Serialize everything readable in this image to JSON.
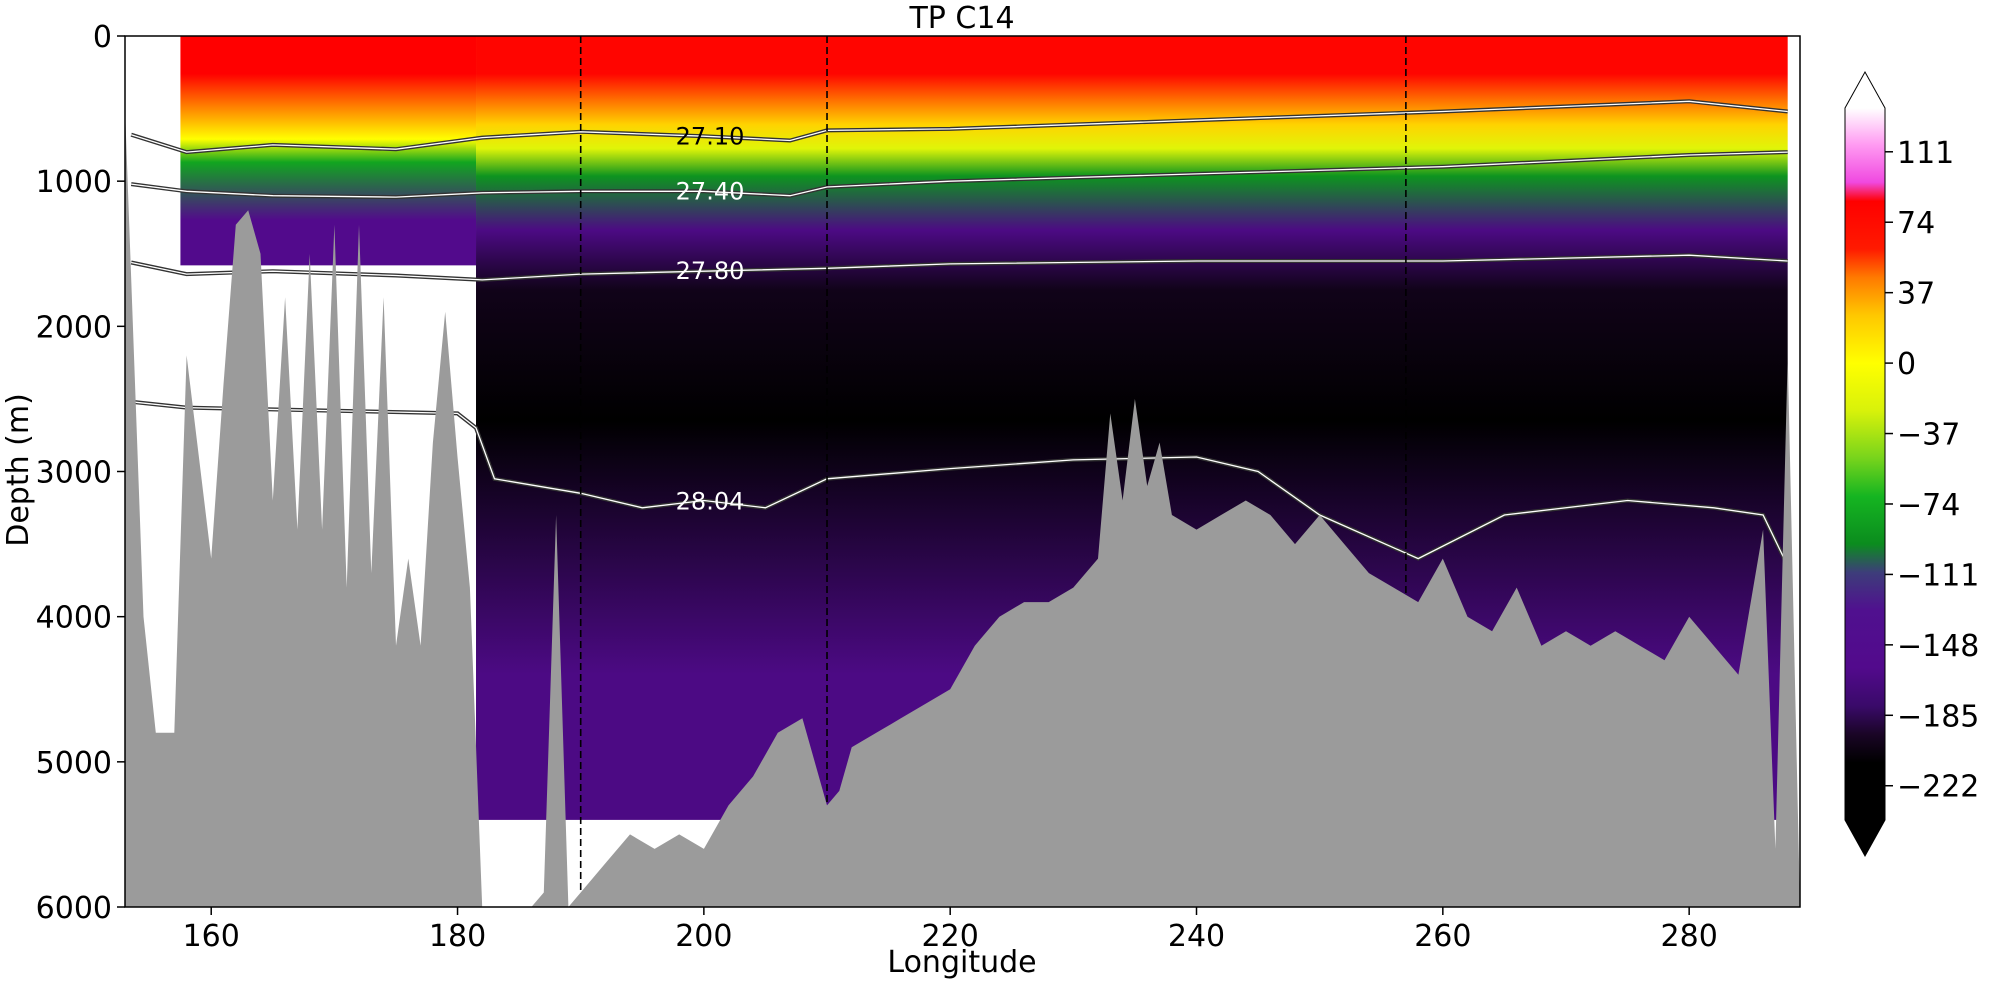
{
  "chart_data": {
    "type": "heatmap",
    "title": "TP C14",
    "xlabel": "Longitude",
    "ylabel": "Depth (m)",
    "xlim": [
      153,
      289
    ],
    "ylim": [
      6000,
      0
    ],
    "x_ticks": [
      "160",
      "180",
      "200",
      "220",
      "240",
      "260",
      "280"
    ],
    "x_tick_values": [
      160,
      180,
      200,
      220,
      240,
      260,
      280
    ],
    "y_ticks": [
      "0",
      "1000",
      "2000",
      "3000",
      "4000",
      "5000",
      "6000"
    ],
    "y_tick_values": [
      0,
      1000,
      2000,
      3000,
      4000,
      5000,
      6000
    ],
    "colorbar": {
      "ticks": [
        "111",
        "74",
        "37",
        "0",
        "−37",
        "−74",
        "−111",
        "−148",
        "−185",
        "−222"
      ],
      "tick_values": [
        111,
        74,
        37,
        0,
        -37,
        -74,
        -111,
        -148,
        -185,
        -222
      ],
      "range": [
        -240,
        134
      ],
      "extend": "both",
      "color_stops": [
        {
          "value": -240,
          "color": "#000000"
        },
        {
          "value": -210,
          "color": "#000000"
        },
        {
          "value": -195,
          "color": "#1a0526"
        },
        {
          "value": -180,
          "color": "#3a0a6a"
        },
        {
          "value": -160,
          "color": "#520a8c"
        },
        {
          "value": -130,
          "color": "#50108f"
        },
        {
          "value": -110,
          "color": "#3d3d7a"
        },
        {
          "value": -95,
          "color": "#0b8c1e"
        },
        {
          "value": -70,
          "color": "#15b521"
        },
        {
          "value": -50,
          "color": "#77d41c"
        },
        {
          "value": -25,
          "color": "#d8f20a"
        },
        {
          "value": 0,
          "color": "#ffff00"
        },
        {
          "value": 25,
          "color": "#ffc800"
        },
        {
          "value": 45,
          "color": "#ff7a00"
        },
        {
          "value": 60,
          "color": "#ff1a00"
        },
        {
          "value": 85,
          "color": "#ff0000"
        },
        {
          "value": 95,
          "color": "#f049e0"
        },
        {
          "value": 115,
          "color": "#ff9cf2"
        },
        {
          "value": 134,
          "color": "#ffffff"
        }
      ]
    },
    "section_bands": [
      {
        "lon": [
          157.5,
          181.5
        ],
        "depth_max": 1580,
        "layers": [
          {
            "depth": [
              0,
              520
            ],
            "value": 85
          },
          {
            "depth": [
              520,
              640
            ],
            "value": 30
          },
          {
            "depth": [
              640,
              780
            ],
            "value": 0
          },
          {
            "depth": [
              780,
              960
            ],
            "value": -80
          },
          {
            "depth": [
              960,
              1580
            ],
            "value": -160
          }
        ]
      },
      {
        "lon": [
          181.5,
          288
        ],
        "depth_max": 5400,
        "layers": [
          {
            "depth": [
              0,
              520
            ],
            "value": 80
          },
          {
            "depth": [
              520,
              700
            ],
            "value": 20
          },
          {
            "depth": [
              700,
              850
            ],
            "value": -20
          },
          {
            "depth": [
              850,
              1080
            ],
            "value": -90
          },
          {
            "depth": [
              1080,
              1600
            ],
            "value": -165
          },
          {
            "depth": [
              1600,
              1900
            ],
            "value": -200
          },
          {
            "depth": [
              1900,
              3400
            ],
            "value": -225
          },
          {
            "depth": [
              3400,
              5400
            ],
            "value": -165
          }
        ]
      }
    ],
    "isopycnals": [
      {
        "label": "27.10",
        "label_lon": 200.5,
        "label_color": "#000000",
        "lon": [
          153.5,
          158,
          165,
          175,
          182,
          190,
          200,
          207,
          210,
          220,
          240,
          260,
          280,
          288
        ],
        "depth": [
          680,
          800,
          750,
          780,
          700,
          660,
          690,
          720,
          650,
          640,
          580,
          520,
          450,
          520
        ]
      },
      {
        "label": "27.40",
        "label_lon": 200.5,
        "label_color": "#ffffff",
        "lon": [
          153.5,
          158,
          165,
          175,
          182,
          190,
          200,
          207,
          210,
          220,
          240,
          260,
          280,
          288
        ],
        "depth": [
          1020,
          1070,
          1100,
          1110,
          1080,
          1070,
          1070,
          1100,
          1040,
          1000,
          950,
          900,
          820,
          800
        ]
      },
      {
        "label": "27.80",
        "label_lon": 200.5,
        "label_color": "#ffffff",
        "lon": [
          153.5,
          158,
          165,
          175,
          182,
          190,
          200,
          210,
          220,
          240,
          260,
          280,
          288
        ],
        "depth": [
          1560,
          1640,
          1620,
          1650,
          1680,
          1640,
          1620,
          1600,
          1570,
          1550,
          1550,
          1510,
          1550
        ]
      },
      {
        "label": "28.04",
        "label_lon": 200.5,
        "label_color": "#ffffff",
        "lon": [
          153.5,
          158,
          180,
          181.5,
          183,
          190,
          195,
          200,
          205,
          210,
          220,
          230,
          240,
          245,
          250,
          258,
          265,
          275,
          282,
          286,
          288
        ],
        "depth": [
          2520,
          2560,
          2600,
          2700,
          3050,
          3150,
          3250,
          3200,
          3250,
          3050,
          2980,
          2920,
          2900,
          3000,
          3300,
          3600,
          3300,
          3200,
          3250,
          3300,
          3650
        ]
      }
    ],
    "vertical_markers_lon": [
      190,
      210,
      257
    ],
    "bathymetry": {
      "lon": [
        153,
        154.5,
        155.5,
        157,
        158,
        160,
        161,
        162,
        163,
        164,
        165,
        166,
        167,
        168,
        169,
        170,
        171,
        172,
        173,
        174,
        175,
        176,
        177,
        178,
        179,
        180,
        181,
        182,
        183,
        184,
        185,
        186,
        187,
        188,
        189,
        190,
        192,
        194,
        196,
        198,
        200,
        202,
        204,
        206,
        208,
        209,
        210,
        211,
        212,
        214,
        216,
        218,
        220,
        222,
        224,
        226,
        228,
        230,
        232,
        233,
        234,
        235,
        236,
        237,
        238,
        240,
        242,
        244,
        246,
        248,
        250,
        252,
        254,
        256,
        258,
        260,
        262,
        264,
        266,
        268,
        270,
        272,
        274,
        276,
        278,
        280,
        282,
        284,
        286,
        287,
        288,
        289
      ],
      "depth": [
        500,
        4000,
        4800,
        4800,
        2200,
        3600,
        2400,
        1300,
        1200,
        1500,
        3200,
        1800,
        3400,
        1500,
        3400,
        1300,
        3800,
        1300,
        3700,
        1800,
        4200,
        3600,
        4200,
        2800,
        1900,
        2900,
        3800,
        6000,
        6000,
        6000,
        6000,
        6000,
        5900,
        3300,
        6000,
        5900,
        5700,
        5500,
        5600,
        5500,
        5600,
        5300,
        5100,
        4800,
        4700,
        5000,
        5300,
        5200,
        4900,
        4800,
        4700,
        4600,
        4500,
        4200,
        4000,
        3900,
        3900,
        3800,
        3600,
        2600,
        3200,
        2500,
        3100,
        2800,
        3300,
        3400,
        3300,
        3200,
        3300,
        3500,
        3300,
        3500,
        3700,
        3800,
        3900,
        3600,
        4000,
        4100,
        3800,
        4200,
        4100,
        4200,
        4100,
        4200,
        4300,
        4000,
        4200,
        4400,
        3400,
        5600,
        2200,
        6000
      ],
      "fill": "#9b9b9b"
    }
  }
}
